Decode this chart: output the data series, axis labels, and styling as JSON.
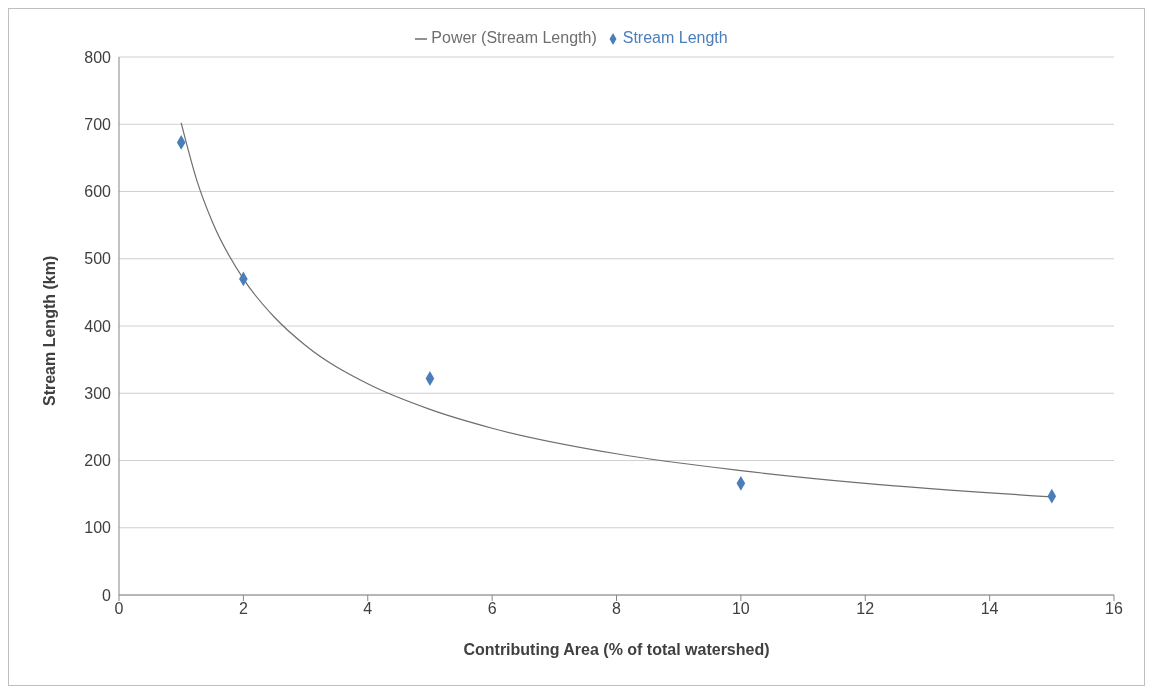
{
  "chart_data": {
    "type": "scatter",
    "xlabel": "Contributing Area (% of total watershed)",
    "ylabel": "Stream Length (km)",
    "xlim": [
      0,
      16
    ],
    "xticks": [
      0,
      2,
      4,
      6,
      8,
      10,
      12,
      14,
      16
    ],
    "ylim": [
      0,
      800
    ],
    "yticks": [
      0,
      100,
      200,
      300,
      400,
      500,
      600,
      700,
      800
    ],
    "grid": "y",
    "legend": "top",
    "marker": "diamond",
    "series": [
      {
        "name": "Stream Length",
        "color": "#4a7ebb",
        "x": [
          1,
          2,
          5,
          10,
          15
        ],
        "values": [
          673,
          470,
          322,
          166,
          147
        ]
      },
      {
        "name": "Power (Stream Length)",
        "type": "line",
        "color": "#6e6e6e",
        "line_style": "solid",
        "marker": "none",
        "x": [
          1,
          1.25,
          1.5,
          2,
          2.5,
          3,
          4,
          5,
          6,
          8,
          10,
          12,
          15
        ],
        "values": [
          702,
          617,
          555,
          470,
          413,
          371,
          314,
          276,
          248,
          210,
          185,
          166,
          146
        ]
      }
    ]
  }
}
